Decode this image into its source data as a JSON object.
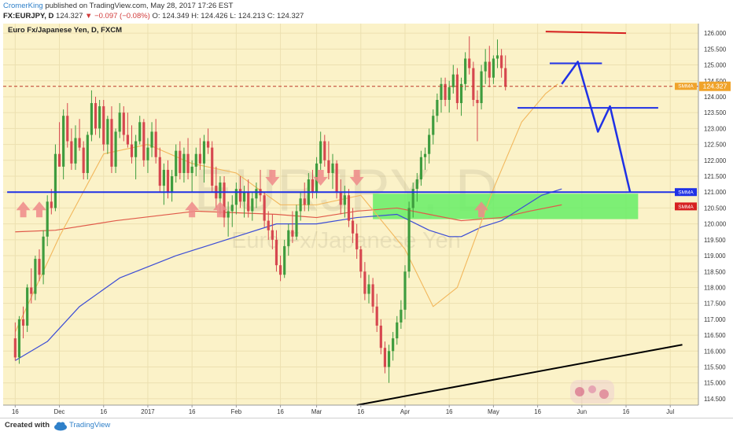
{
  "header": {
    "author": "CromerKing",
    "published_text": "published on TradingView.com, May 28, 2017 17:26 EST",
    "symbol": "FX:EURJPY, D",
    "last": "124.327",
    "change": "−0.097 (−0.08%)",
    "ohlc": "O: 124.349 H: 124.426 L: 124.213 C: 124.327"
  },
  "footer": {
    "made_with": "Created with",
    "brand": "TradingView"
  },
  "colors": {
    "background": "#fbf2c8",
    "grid": "#ece0b0",
    "up": "#3e9c3e",
    "down": "#d6474f",
    "smma_fast": "#f2b75c",
    "smma_blue": "#3b4cd6",
    "smma_red": "#e05a4a",
    "drawing_blue": "#1f31e6",
    "drawing_red": "#d62020",
    "zone": "#66ee66",
    "price_tag": "#f0a32a"
  },
  "chart_data": {
    "type": "candlestick",
    "title": "Euro Fx/Japanese Yen, D, FXCM",
    "watermark_symbol": "EURJPY, D",
    "watermark_name": "Euro Fx/Japanese Yen",
    "ylim": [
      114.3,
      126.3
    ],
    "y_ticks": [
      "126.000",
      "125.500",
      "125.000",
      "124.500",
      "124.000",
      "123.500",
      "123.000",
      "122.500",
      "122.000",
      "121.500",
      "121.000",
      "120.500",
      "120.000",
      "119.500",
      "119.000",
      "118.500",
      "118.000",
      "117.500",
      "117.000",
      "116.500",
      "116.000",
      "115.500",
      "115.000",
      "114.500"
    ],
    "x_ticks": [
      {
        "label": "16",
        "t": 0
      },
      {
        "label": "Dec",
        "t": 11
      },
      {
        "label": "16",
        "t": 22
      },
      {
        "label": "2017",
        "t": 33
      },
      {
        "label": "16",
        "t": 44
      },
      {
        "label": "Feb",
        "t": 55
      },
      {
        "label": "16",
        "t": 66
      },
      {
        "label": "Mar",
        "t": 75
      },
      {
        "label": "16",
        "t": 86
      },
      {
        "label": "Apr",
        "t": 97
      },
      {
        "label": "16",
        "t": 108
      },
      {
        "label": "May",
        "t": 119
      },
      {
        "label": "16",
        "t": 130
      },
      {
        "label": "Jun",
        "t": 141
      },
      {
        "label": "16",
        "t": 152
      },
      {
        "label": "Jul",
        "t": 163
      }
    ],
    "last_price": 124.327,
    "last_price_label": "124.327",
    "indicator_tag_label": "SMMA",
    "axis_labels": [
      {
        "text": "SMMA",
        "price": 121.0,
        "color": "#1f31e6"
      },
      {
        "text": "SMMA",
        "price": 120.55,
        "color": "#d62020"
      }
    ],
    "key_prices": [
      {
        "x": [
          -2,
          167
        ],
        "price": 121.0
      },
      {
        "x": [
          125,
          160
        ],
        "price": 123.65
      },
      {
        "x": [
          133,
          146
        ],
        "price": 125.05
      },
      {
        "x": [
          132,
          152
        ],
        "price": 126.0
      }
    ],
    "candles": [
      [
        116.4,
        116.9,
        115.7,
        115.8
      ],
      [
        115.8,
        117.1,
        115.6,
        117.0
      ],
      [
        117.0,
        117.4,
        116.4,
        116.8
      ],
      [
        116.8,
        118.1,
        116.6,
        118.0
      ],
      [
        118.0,
        118.6,
        117.5,
        117.8
      ],
      [
        117.8,
        119.0,
        117.6,
        118.9
      ],
      [
        118.9,
        119.2,
        118.2,
        118.4
      ],
      [
        118.4,
        119.8,
        118.1,
        119.6
      ],
      [
        119.6,
        120.9,
        119.3,
        120.7
      ],
      [
        120.7,
        121.1,
        120.3,
        120.5
      ],
      [
        120.5,
        122.5,
        120.4,
        122.2
      ],
      [
        122.2,
        123.2,
        121.9,
        121.8
      ],
      [
        121.8,
        123.6,
        121.4,
        123.4
      ],
      [
        123.4,
        123.8,
        122.4,
        122.6
      ],
      [
        122.6,
        123.0,
        121.7,
        121.9
      ],
      [
        121.9,
        123.1,
        121.7,
        122.7
      ],
      [
        122.7,
        123.3,
        122.3,
        122.4
      ],
      [
        122.4,
        122.6,
        121.4,
        121.6
      ],
      [
        121.6,
        122.9,
        121.4,
        122.8
      ],
      [
        122.8,
        124.2,
        122.6,
        123.8
      ],
      [
        123.8,
        124.0,
        122.8,
        123.0
      ],
      [
        123.0,
        123.9,
        122.7,
        123.7
      ],
      [
        123.7,
        123.9,
        122.3,
        122.5
      ],
      [
        122.5,
        123.4,
        122.2,
        123.3
      ],
      [
        123.3,
        123.7,
        121.6,
        121.8
      ],
      [
        121.8,
        123.0,
        121.6,
        122.9
      ],
      [
        122.9,
        123.8,
        122.7,
        123.5
      ],
      [
        123.5,
        123.7,
        122.6,
        122.8
      ],
      [
        122.8,
        123.5,
        122.4,
        122.5
      ],
      [
        122.5,
        123.1,
        121.9,
        122.1
      ],
      [
        122.1,
        122.8,
        121.4,
        122.6
      ],
      [
        122.6,
        123.4,
        122.5,
        123.2
      ],
      [
        123.2,
        123.3,
        121.8,
        122.0
      ],
      [
        122.0,
        122.7,
        121.6,
        122.4
      ],
      [
        122.4,
        123.2,
        122.1,
        122.9
      ],
      [
        122.9,
        123.3,
        121.9,
        122.1
      ],
      [
        122.1,
        122.4,
        121.0,
        121.2
      ],
      [
        121.2,
        121.9,
        120.6,
        121.7
      ],
      [
        121.7,
        122.0,
        120.8,
        121.0
      ],
      [
        121.0,
        121.7,
        120.7,
        121.5
      ],
      [
        121.5,
        122.5,
        121.3,
        122.3
      ],
      [
        122.3,
        122.6,
        121.4,
        121.6
      ],
      [
        121.6,
        122.4,
        121.3,
        122.2
      ],
      [
        122.2,
        122.7,
        121.4,
        121.6
      ],
      [
        121.6,
        122.0,
        121.0,
        121.8
      ],
      [
        121.8,
        122.4,
        121.5,
        122.2
      ],
      [
        122.2,
        122.7,
        121.7,
        121.9
      ],
      [
        121.9,
        122.8,
        121.3,
        122.6
      ],
      [
        122.6,
        123.0,
        122.2,
        122.4
      ],
      [
        122.4,
        122.6,
        121.0,
        121.2
      ],
      [
        121.2,
        121.8,
        120.5,
        120.8
      ],
      [
        120.8,
        121.5,
        120.3,
        121.3
      ],
      [
        121.3,
        121.5,
        119.9,
        120.2
      ],
      [
        120.2,
        120.7,
        119.6,
        120.4
      ],
      [
        120.4,
        120.9,
        119.9,
        120.6
      ],
      [
        120.6,
        121.3,
        120.3,
        121.1
      ],
      [
        121.1,
        121.5,
        120.5,
        120.7
      ],
      [
        120.7,
        121.2,
        120.2,
        121.0
      ],
      [
        121.0,
        121.4,
        120.2,
        120.4
      ],
      [
        120.4,
        121.0,
        120.1,
        120.8
      ],
      [
        120.8,
        121.3,
        120.5,
        121.1
      ],
      [
        121.1,
        121.7,
        120.7,
        120.9
      ],
      [
        120.9,
        121.0,
        119.9,
        120.1
      ],
      [
        120.1,
        120.4,
        119.5,
        119.8
      ],
      [
        119.8,
        120.3,
        119.2,
        119.5
      ],
      [
        119.5,
        119.8,
        118.5,
        118.7
      ],
      [
        118.7,
        119.0,
        118.2,
        118.4
      ],
      [
        118.4,
        119.5,
        118.3,
        119.3
      ],
      [
        119.3,
        120.0,
        119.0,
        119.8
      ],
      [
        119.8,
        120.4,
        119.4,
        119.6
      ],
      [
        119.6,
        120.6,
        119.5,
        120.4
      ],
      [
        120.4,
        121.0,
        120.1,
        120.8
      ],
      [
        120.8,
        121.3,
        120.4,
        120.6
      ],
      [
        120.6,
        121.6,
        120.4,
        121.4
      ],
      [
        121.4,
        121.7,
        120.8,
        121.0
      ],
      [
        121.0,
        122.1,
        120.8,
        121.9
      ],
      [
        121.9,
        122.9,
        121.7,
        122.6
      ],
      [
        122.6,
        122.8,
        121.8,
        122.0
      ],
      [
        122.0,
        122.6,
        121.4,
        121.6
      ],
      [
        121.6,
        122.2,
        121.1,
        121.9
      ],
      [
        121.9,
        122.0,
        120.8,
        121.0
      ],
      [
        121.0,
        121.4,
        120.3,
        120.6
      ],
      [
        120.6,
        121.2,
        120.2,
        120.9
      ],
      [
        120.9,
        121.1,
        119.9,
        120.1
      ],
      [
        120.1,
        120.5,
        119.4,
        119.7
      ],
      [
        119.7,
        120.0,
        118.9,
        119.2
      ],
      [
        119.2,
        119.3,
        118.3,
        118.5
      ],
      [
        118.5,
        118.8,
        117.6,
        117.8
      ],
      [
        117.8,
        118.4,
        117.5,
        118.1
      ],
      [
        118.1,
        118.3,
        117.2,
        117.4
      ],
      [
        117.4,
        117.8,
        116.6,
        116.8
      ],
      [
        116.8,
        117.0,
        115.9,
        116.1
      ],
      [
        116.1,
        116.3,
        115.3,
        115.5
      ],
      [
        115.5,
        116.2,
        115.0,
        116.0
      ],
      [
        116.0,
        116.6,
        115.7,
        116.4
      ],
      [
        116.4,
        117.1,
        116.2,
        116.9
      ],
      [
        116.9,
        117.6,
        116.7,
        117.3
      ],
      [
        117.3,
        118.7,
        117.0,
        118.5
      ],
      [
        118.5,
        120.7,
        118.3,
        120.5
      ],
      [
        120.5,
        121.3,
        120.2,
        121.1
      ],
      [
        121.1,
        121.6,
        120.7,
        121.4
      ],
      [
        121.4,
        122.3,
        121.2,
        122.1
      ],
      [
        122.1,
        122.4,
        121.7,
        122.2
      ],
      [
        122.2,
        123.0,
        121.9,
        122.8
      ],
      [
        122.8,
        123.6,
        122.5,
        123.4
      ],
      [
        123.4,
        124.1,
        123.2,
        123.9
      ],
      [
        123.9,
        124.6,
        123.5,
        124.4
      ],
      [
        124.4,
        124.6,
        123.7,
        123.9
      ],
      [
        123.9,
        124.5,
        123.5,
        124.3
      ],
      [
        124.3,
        125.0,
        124.1,
        124.7
      ],
      [
        124.7,
        124.9,
        123.6,
        123.8
      ],
      [
        123.8,
        124.6,
        123.4,
        124.4
      ],
      [
        124.4,
        125.4,
        124.2,
        125.2
      ],
      [
        125.2,
        125.9,
        124.7,
        124.9
      ],
      [
        124.9,
        125.1,
        123.7,
        123.9
      ],
      [
        123.9,
        124.2,
        122.6,
        123.8
      ],
      [
        123.8,
        125.0,
        123.6,
        124.8
      ],
      [
        124.8,
        125.5,
        124.4,
        125.1
      ],
      [
        125.1,
        125.6,
        124.3,
        124.6
      ],
      [
        124.6,
        125.3,
        124.4,
        125.2
      ],
      [
        125.2,
        125.8,
        124.9,
        125.3
      ],
      [
        125.3,
        125.5,
        124.6,
        124.9
      ],
      [
        124.9,
        125.3,
        124.2,
        124.33
      ]
    ],
    "smma_fast": [
      [
        0,
        116.6
      ],
      [
        11,
        119.6
      ],
      [
        22,
        122.2
      ],
      [
        33,
        122.5
      ],
      [
        44,
        121.9
      ],
      [
        55,
        121.6
      ],
      [
        66,
        120.6
      ],
      [
        75,
        120.6
      ],
      [
        86,
        120.9
      ],
      [
        97,
        119.2
      ],
      [
        104,
        117.4
      ],
      [
        110,
        118.0
      ],
      [
        119,
        121.1
      ],
      [
        126,
        123.2
      ],
      [
        132,
        124.1
      ],
      [
        135,
        124.4
      ]
    ],
    "smma_blue": [
      [
        0,
        115.7
      ],
      [
        8,
        116.3
      ],
      [
        16,
        117.4
      ],
      [
        26,
        118.3
      ],
      [
        40,
        119.0
      ],
      [
        55,
        119.6
      ],
      [
        65,
        120.0
      ],
      [
        75,
        120.0
      ],
      [
        85,
        120.2
      ],
      [
        95,
        120.3
      ],
      [
        103,
        119.8
      ],
      [
        108,
        119.6
      ],
      [
        111,
        119.6
      ],
      [
        116,
        119.9
      ],
      [
        121,
        120.1
      ],
      [
        126,
        120.5
      ],
      [
        131,
        120.9
      ],
      [
        136,
        121.1
      ]
    ],
    "smma_red": [
      [
        0,
        119.75
      ],
      [
        10,
        119.8
      ],
      [
        25,
        120.1
      ],
      [
        45,
        120.4
      ],
      [
        65,
        120.3
      ],
      [
        75,
        120.2
      ],
      [
        85,
        120.4
      ],
      [
        95,
        120.5
      ],
      [
        103,
        120.3
      ],
      [
        111,
        120.1
      ],
      [
        121,
        120.2
      ],
      [
        128,
        120.4
      ],
      [
        136,
        120.6
      ]
    ],
    "drawings": {
      "support": [
        [
          -2,
          121.0
        ],
        [
          167,
          121.0
        ]
      ],
      "resistance": [
        [
          132,
          126.05
        ],
        [
          152,
          126.0
        ]
      ],
      "level_high": [
        [
          133,
          125.05
        ],
        [
          146,
          125.05
        ]
      ],
      "level_mid": [
        [
          125,
          123.65
        ],
        [
          160,
          123.65
        ]
      ],
      "projection": [
        [
          136,
          124.4
        ],
        [
          140,
          125.1
        ],
        [
          145,
          122.9
        ],
        [
          148,
          123.7
        ],
        [
          153,
          121.0
        ]
      ],
      "trendline": [
        [
          85,
          114.3
        ],
        [
          166,
          116.2
        ]
      ],
      "zone": {
        "t0": 89,
        "t1": 155,
        "p_low": 120.15,
        "p_high": 120.95
      },
      "up_arrows": [
        [
          2,
          120.8
        ],
        [
          6,
          120.8
        ],
        [
          44,
          120.8
        ],
        [
          51,
          120.8
        ],
        [
          116,
          120.8
        ]
      ],
      "down_arrows": [
        [
          64,
          121.5
        ],
        [
          76,
          121.5
        ],
        [
          85,
          121.5
        ]
      ]
    }
  }
}
